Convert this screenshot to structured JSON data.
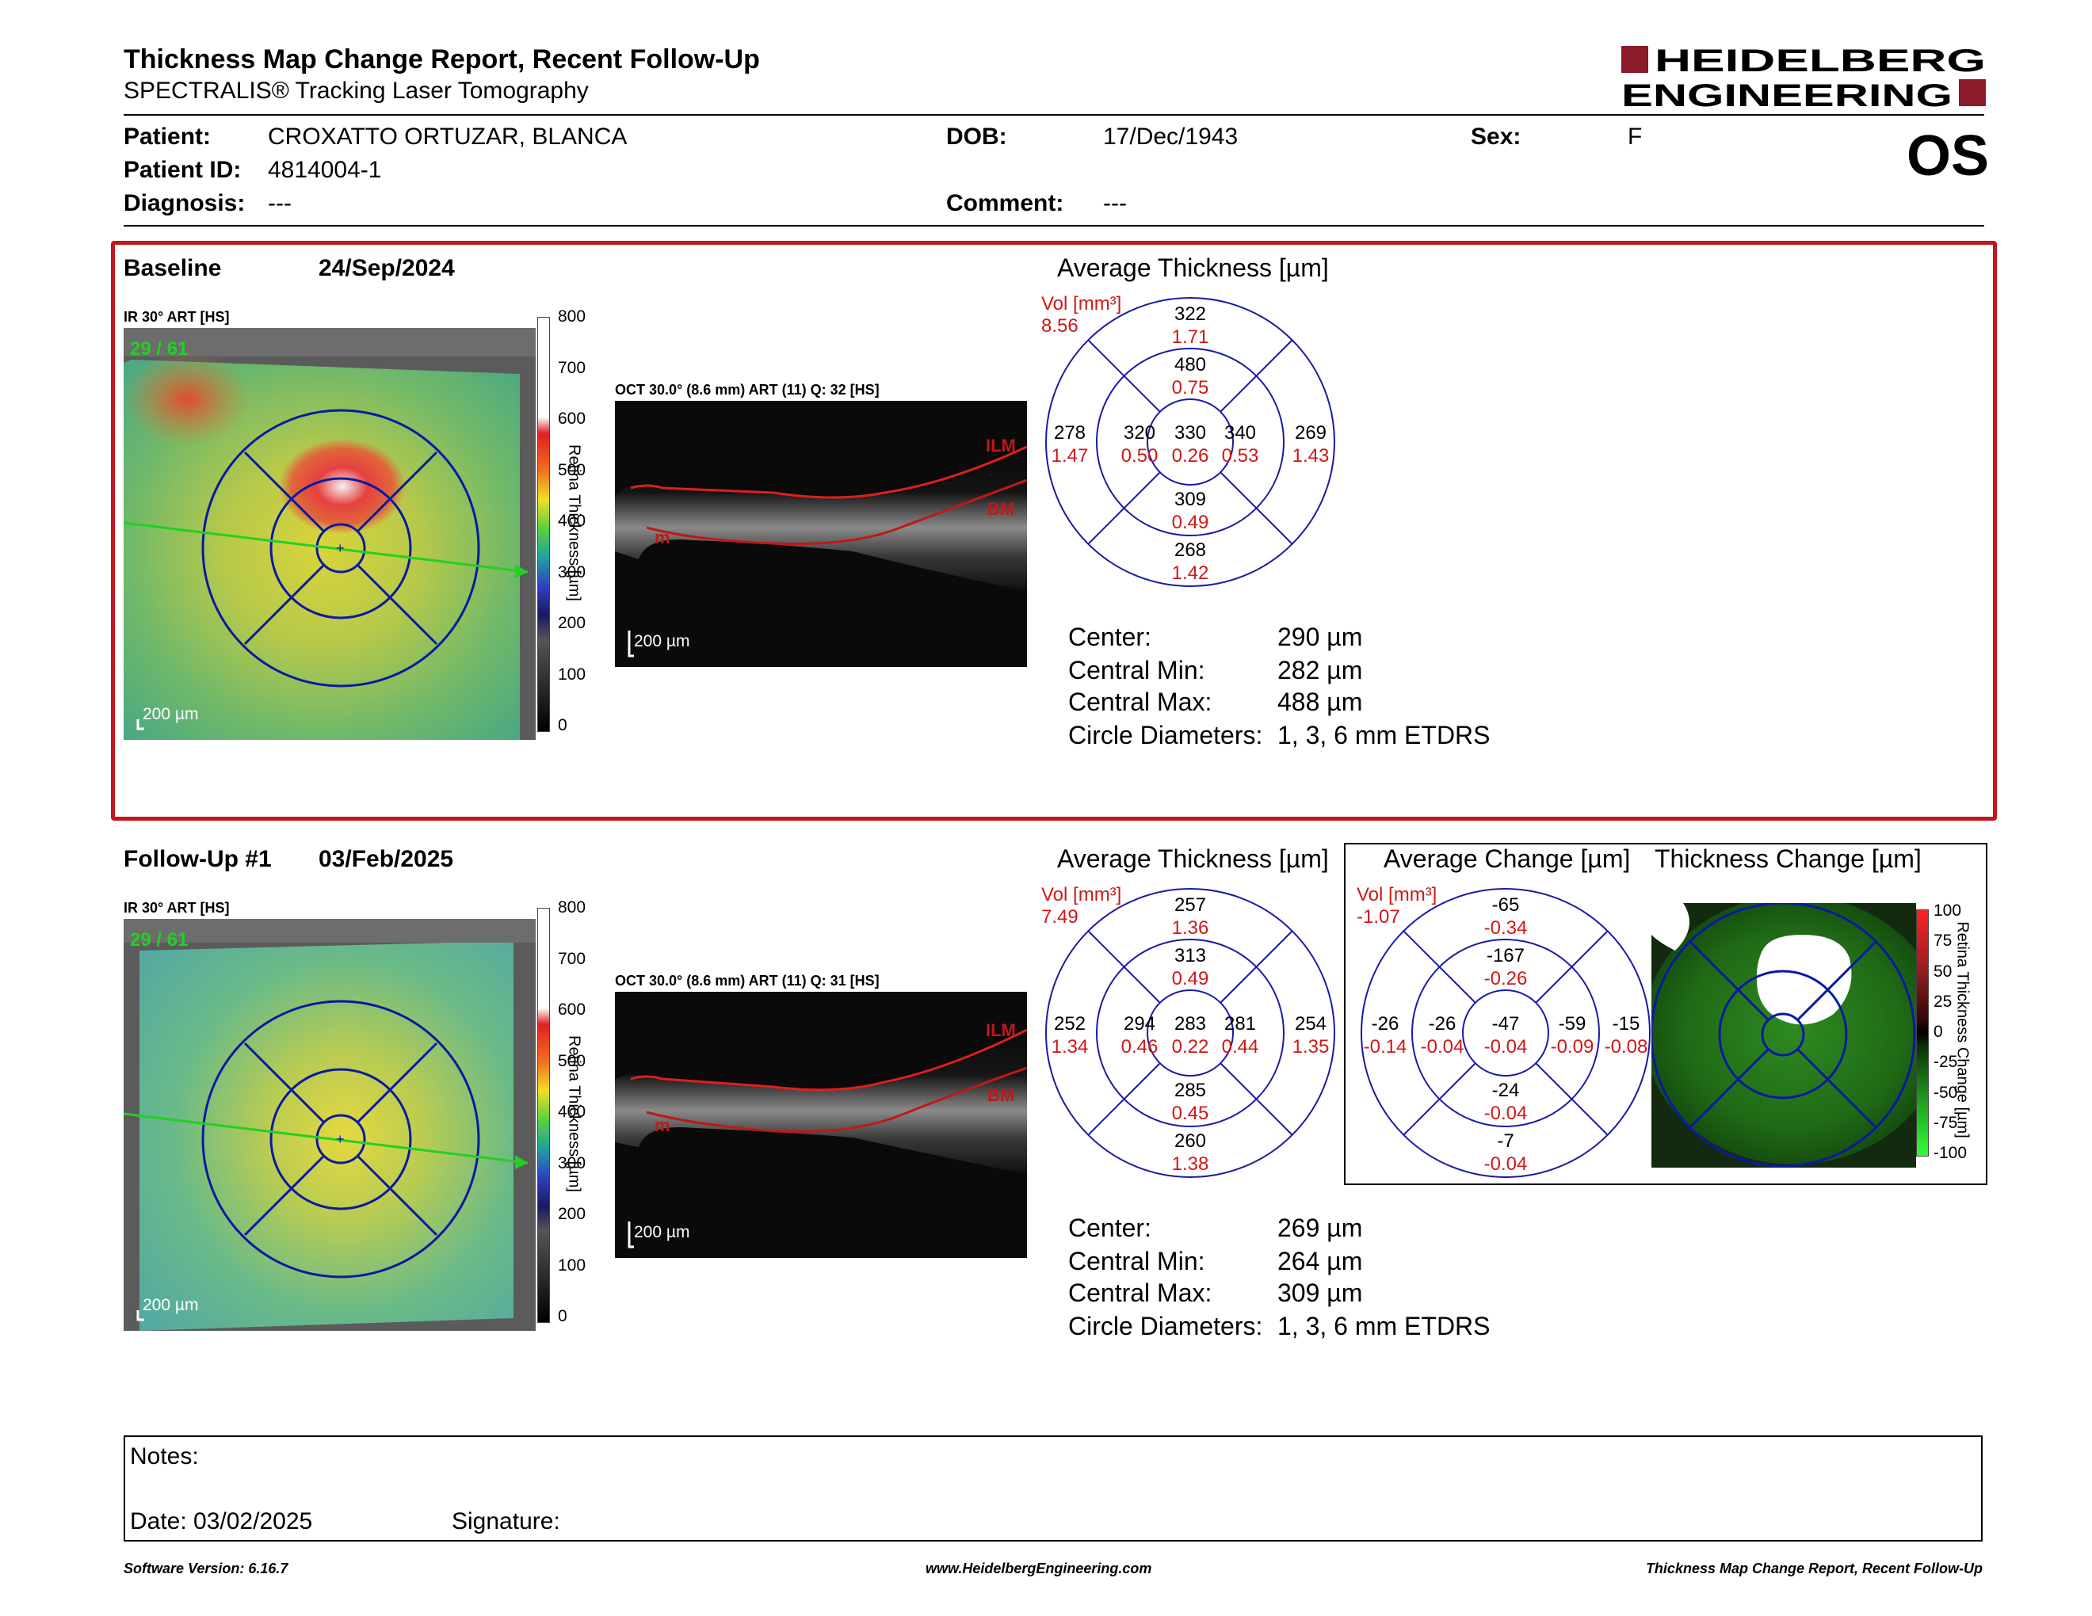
{
  "header": {
    "title": "Thickness Map Change Report, Recent Follow-Up",
    "subtitle": "SPECTRALIS® Tracking Laser Tomography",
    "brand_line1": "HEIDELBERG",
    "brand_line2": "ENGINEERING",
    "brand_color": "#8b1a2b",
    "eye": "OS"
  },
  "patient": {
    "patient_label": "Patient:",
    "patient_value": "CROXATTO ORTUZAR, BLANCA",
    "id_label": "Patient ID:",
    "id_value": "4814004-1",
    "diag_label": "Diagnosis:",
    "diag_value": "---",
    "dob_label": "DOB:",
    "dob_value": "17/Dec/1943",
    "comment_label": "Comment:",
    "comment_value": "---",
    "sex_label": "Sex:",
    "sex_value": "F"
  },
  "common": {
    "ir_label": "IR 30° ART [HS]",
    "scale_label": "200 µm",
    "fixation": "29 / 61",
    "colorbar_ticks": [
      "800",
      "700",
      "600",
      "500",
      "400",
      "300",
      "200",
      "100",
      "0"
    ],
    "colorbar_title": "Retina Thickness [µm]",
    "avg_title": "Average Thickness [µm]",
    "vol_label": "Vol [mm³]",
    "ilm": "ILM",
    "bm": "BM",
    "m": "m",
    "center_label": "Center:",
    "min_label": "Central Min:",
    "max_label": "Central Max:",
    "diam_label": "Circle Diameters:",
    "diam_value": "1, 3, 6 mm ETDRS"
  },
  "baseline": {
    "label": "Baseline",
    "date": "24/Sep/2024",
    "oct_label": "OCT 30.0° (8.6 mm) ART (11) Q: 32 [HS]",
    "vol": "8.56",
    "sectors": {
      "outer_sup": [
        "322",
        "1.71"
      ],
      "inner_sup": [
        "480",
        "0.75"
      ],
      "outer_temp": [
        "278",
        "1.47"
      ],
      "inner_temp": [
        "320",
        "0.50"
      ],
      "center": [
        "330",
        "0.26"
      ],
      "inner_nasal": [
        "340",
        "0.53"
      ],
      "outer_nasal": [
        "269",
        "1.43"
      ],
      "inner_inf": [
        "309",
        "0.49"
      ],
      "outer_inf": [
        "268",
        "1.42"
      ]
    },
    "center_value": "290 µm",
    "min_value": "282 µm",
    "max_value": "488 µm"
  },
  "followup": {
    "label": "Follow-Up #1",
    "date": "03/Feb/2025",
    "oct_label": "OCT 30.0° (8.6 mm) ART (11) Q: 31 [HS]",
    "vol": "7.49",
    "sectors": {
      "outer_sup": [
        "257",
        "1.36"
      ],
      "inner_sup": [
        "313",
        "0.49"
      ],
      "outer_temp": [
        "252",
        "1.34"
      ],
      "inner_temp": [
        "294",
        "0.46"
      ],
      "center": [
        "283",
        "0.22"
      ],
      "inner_nasal": [
        "281",
        "0.44"
      ],
      "outer_nasal": [
        "254",
        "1.35"
      ],
      "inner_inf": [
        "285",
        "0.45"
      ],
      "outer_inf": [
        "260",
        "1.38"
      ]
    },
    "center_value": "269 µm",
    "min_value": "264 µm",
    "max_value": "309 µm"
  },
  "change": {
    "avg_title": "Average Change [µm]",
    "map_title": "Thickness Change [µm]",
    "vol": "-1.07",
    "sectors": {
      "outer_sup": [
        "-65",
        "-0.34"
      ],
      "inner_sup": [
        "-167",
        "-0.26"
      ],
      "outer_temp": [
        "-26",
        "-0.14"
      ],
      "inner_temp": [
        "-26",
        "-0.04"
      ],
      "center": [
        "-47",
        "-0.04"
      ],
      "inner_nasal": [
        "-59",
        "-0.09"
      ],
      "outer_nasal": [
        "-15",
        "-0.08"
      ],
      "inner_inf": [
        "-24",
        "-0.04"
      ],
      "outer_inf": [
        "-7",
        "-0.04"
      ]
    },
    "colorbar_ticks": [
      "100",
      "75",
      "50",
      "25",
      "0",
      "-25",
      "-50",
      "-75",
      "-100"
    ],
    "colorbar_title": "Retina Thickness Change [µm]"
  },
  "notes": {
    "notes_label": "Notes:",
    "date_label": "Date: 03/02/2025",
    "signature_label": "Signature:"
  },
  "footer": {
    "left": "Software Version: 6.16.7",
    "center": "www.HeidelbergEngineering.com",
    "right": "Thickness Map Change Report, Recent Follow-Up"
  }
}
